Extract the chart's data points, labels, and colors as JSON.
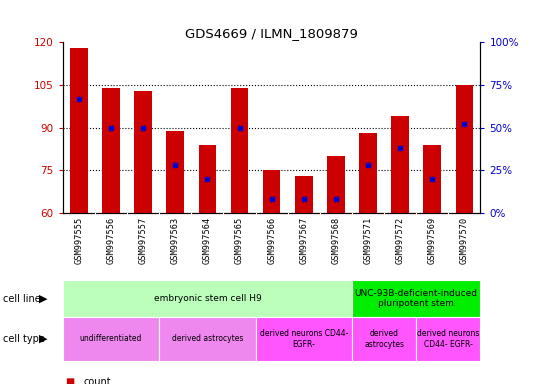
{
  "title": "GDS4669 / ILMN_1809879",
  "samples": [
    "GSM997555",
    "GSM997556",
    "GSM997557",
    "GSM997563",
    "GSM997564",
    "GSM997565",
    "GSM997566",
    "GSM997567",
    "GSM997568",
    "GSM997571",
    "GSM997572",
    "GSM997569",
    "GSM997570"
  ],
  "counts": [
    118,
    104,
    103,
    89,
    84,
    104,
    75,
    73,
    80,
    88,
    94,
    84,
    105
  ],
  "percentile_ranks": [
    67,
    50,
    50,
    28,
    20,
    50,
    8,
    8,
    8,
    28,
    38,
    20,
    52
  ],
  "ylim_left": [
    60,
    120
  ],
  "ylim_right": [
    0,
    100
  ],
  "yticks_left": [
    60,
    75,
    90,
    105,
    120
  ],
  "yticks_right": [
    0,
    25,
    50,
    75,
    100
  ],
  "ytick_labels_right": [
    "0%",
    "25%",
    "50%",
    "75%",
    "100%"
  ],
  "bar_color": "#cc0000",
  "dot_color": "#0000cc",
  "bar_width": 0.55,
  "cell_line_groups": [
    {
      "label": "embryonic stem cell H9",
      "start": 0,
      "end": 8,
      "color": "#bbffbb"
    },
    {
      "label": "UNC-93B-deficient-induced\npluripotent stem",
      "start": 9,
      "end": 12,
      "color": "#00ee00"
    }
  ],
  "cell_type_groups": [
    {
      "label": "undifferentiated",
      "start": 0,
      "end": 2,
      "color": "#ee88ee"
    },
    {
      "label": "derived astrocytes",
      "start": 3,
      "end": 5,
      "color": "#ee88ee"
    },
    {
      "label": "derived neurons CD44-\nEGFR-",
      "start": 6,
      "end": 8,
      "color": "#ff55ff"
    },
    {
      "label": "derived\nastrocytes",
      "start": 9,
      "end": 10,
      "color": "#ff55ff"
    },
    {
      "label": "derived neurons\nCD44- EGFR-",
      "start": 11,
      "end": 12,
      "color": "#ff55ff"
    }
  ],
  "grid_yticks": [
    75,
    90,
    105
  ],
  "left_tick_color": "#cc0000",
  "right_tick_color": "#0000cc",
  "xtick_bg_color": "#cccccc",
  "fig_bg_color": "#ffffff"
}
